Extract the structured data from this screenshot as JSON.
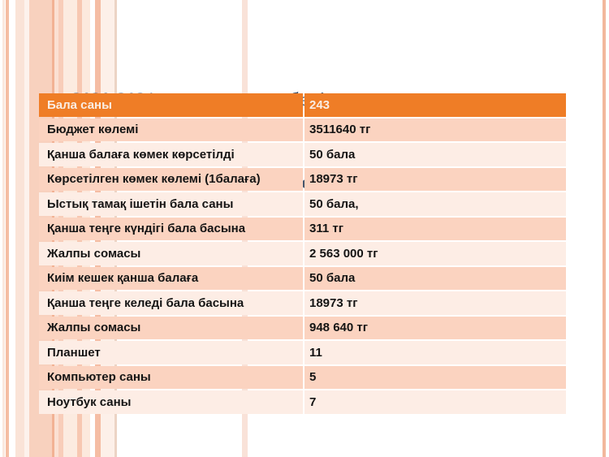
{
  "slide": {
    "title_line1": "2020-2021 оқу жылында  бөлінген заттар және қаржы",
    "title_line2": "есебі"
  },
  "table": {
    "header": {
      "label": "Бала саны",
      "value": "243"
    },
    "rows": [
      {
        "label": "Бюджет көлемі",
        "value": "3511640 тг"
      },
      {
        "label": "Қанша балаға көмек көрсетілді",
        "value": "50 бала"
      },
      {
        "label": "Көрсетілген көмек көлемі (1балаға)",
        "value": "18973 тг"
      },
      {
        "label": "Ыстық тамақ ішетін бала саны",
        "value": "50 бала,"
      },
      {
        "label": "Қанша теңге күндігі бала басына",
        "value": "311 тг"
      },
      {
        "label": "Жалпы сомасы",
        "value": "2 563 000 тг"
      },
      {
        "label": "Киім кешек қанша балаға",
        "value": "50 бала"
      },
      {
        "label": "Қанша теңге келеді бала басына",
        "value": "18973 тг"
      },
      {
        "label": "Жалпы сомасы",
        "value": "948 640 тг"
      },
      {
        "label": "Планшет",
        "value": "11"
      },
      {
        "label": "Компьютер саны",
        "value": "5"
      },
      {
        "label": "Ноутбук саны",
        "value": "7"
      }
    ]
  },
  "colors": {
    "header_bg": "#EF7D26",
    "header_text": "#FAEDE3",
    "row_salmon": "#FBD3C0",
    "row_light": "#FDEDE5",
    "title_text": "#44546A",
    "cell_text": "#141414"
  }
}
